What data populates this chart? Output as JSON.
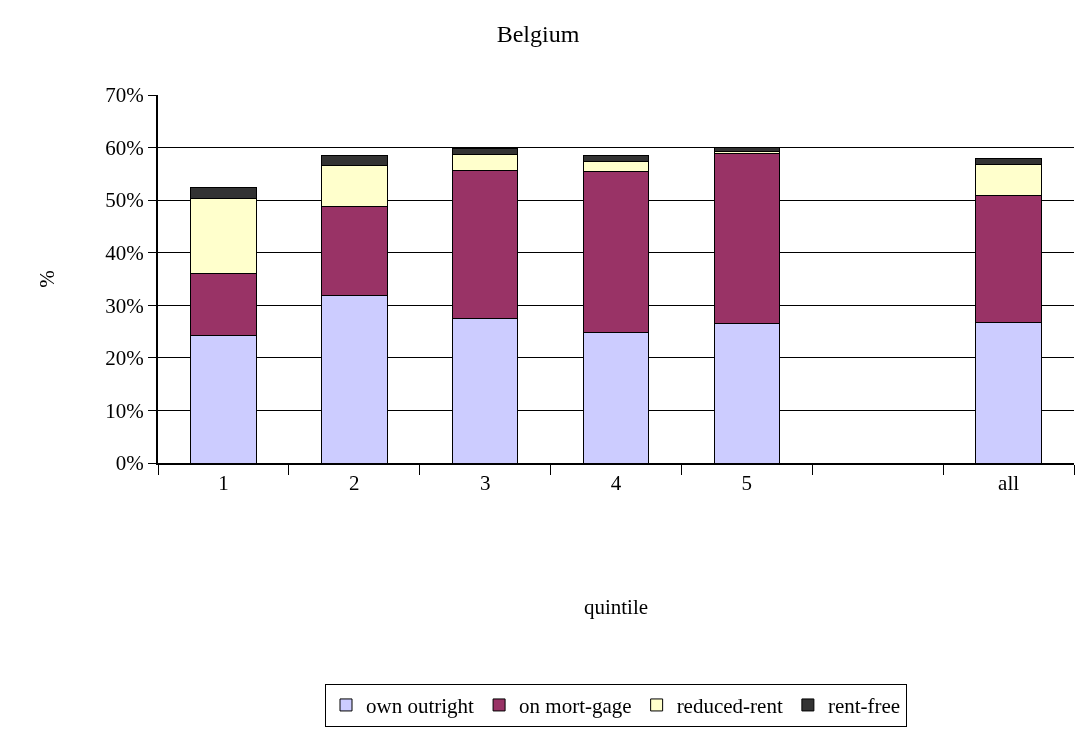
{
  "chart_data": {
    "type": "bar",
    "stacked": true,
    "title": "Belgium",
    "xlabel": "quintile",
    "ylabel": "%",
    "categories": [
      "1",
      "2",
      "3",
      "4",
      "5",
      null,
      "all"
    ],
    "series": [
      {
        "name": "own outright",
        "color": "#ccccff",
        "values": [
          24.3,
          31.9,
          27.4,
          24.8,
          26.6,
          null,
          26.8
        ]
      },
      {
        "name": "on mort-gage",
        "color": "#993366",
        "values": [
          11.7,
          16.9,
          28.3,
          30.7,
          32.3,
          null,
          24.1
        ]
      },
      {
        "name": "reduced-rent",
        "color": "#ffffcc",
        "values": [
          14.3,
          7.7,
          2.9,
          1.9,
          0.4,
          null,
          5.8
        ]
      },
      {
        "name": "rent-free",
        "color": "#333333",
        "values": [
          2.1,
          1.9,
          1.2,
          1.0,
          0.7,
          null,
          1.3
        ]
      }
    ],
    "ylim": [
      0,
      70
    ],
    "yticks": [
      {
        "value": 0,
        "label": "0%"
      },
      {
        "value": 10,
        "label": "10%"
      },
      {
        "value": 20,
        "label": "20%"
      },
      {
        "value": 30,
        "label": "30%"
      },
      {
        "value": 40,
        "label": "40%"
      },
      {
        "value": 50,
        "label": "50%"
      },
      {
        "value": 60,
        "label": "60%"
      },
      {
        "value": 70,
        "label": "70%"
      }
    ],
    "grid": "y",
    "legend": "bottom"
  }
}
